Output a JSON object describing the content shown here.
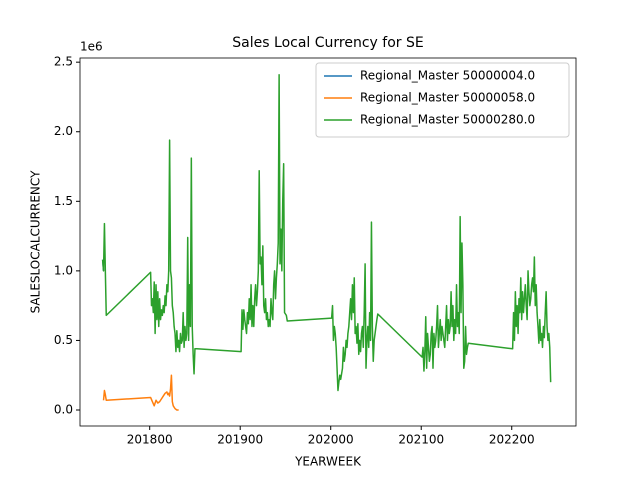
{
  "chart_data": {
    "type": "line",
    "title": "Sales Local Currency for SE",
    "xlabel": "YEARWEEK",
    "ylabel": "SALESLOCALCURRENCY",
    "y_offset_label": "1e6",
    "xlim": [
      201723,
      202271
    ],
    "xticks": [
      201800,
      201900,
      202000,
      202100,
      202200
    ],
    "ylim": [
      -115000,
      2530000
    ],
    "yticks": [
      {
        "value": 0,
        "label": "0.0"
      },
      {
        "value": 500000,
        "label": "0.5"
      },
      {
        "value": 1000000,
        "label": "1.0"
      },
      {
        "value": 1500000,
        "label": "1.5"
      },
      {
        "value": 2000000,
        "label": "2.0"
      },
      {
        "value": 2500000,
        "label": "2.5"
      }
    ],
    "legend": "upper right",
    "grid": false,
    "series": [
      {
        "name": "Regional_Master 50000004.0",
        "color": "#1f77b4",
        "x": [
          201748,
          201749
        ],
        "values": [
          1080000,
          1000000
        ]
      },
      {
        "name": "Regional_Master 50000058.0",
        "color": "#ff7f0e",
        "x": [
          201749,
          201750,
          201751,
          201752,
          201801,
          201803,
          201805,
          201807,
          201809,
          201811,
          201813,
          201815,
          201817,
          201819,
          201820,
          201821,
          201822,
          201823,
          201824,
          201825,
          201826,
          201828,
          201830,
          201832
        ],
        "values": [
          70000,
          140000,
          110000,
          70000,
          90000,
          60000,
          30000,
          70000,
          50000,
          60000,
          80000,
          100000,
          120000,
          130000,
          110000,
          120000,
          100000,
          150000,
          250000,
          60000,
          30000,
          10000,
          0,
          0
        ]
      },
      {
        "name": "Regional_Master 50000280.0",
        "color": "#2ca02c",
        "x": [
          201748,
          201749,
          201750,
          201751,
          201752,
          201801,
          201802,
          201803,
          201804,
          201805,
          201806,
          201807,
          201808,
          201809,
          201810,
          201811,
          201812,
          201813,
          201814,
          201815,
          201816,
          201817,
          201818,
          201819,
          201820,
          201821,
          201822,
          201823,
          201824,
          201825,
          201826,
          201827,
          201828,
          201829,
          201830,
          201831,
          201832,
          201833,
          201834,
          201835,
          201836,
          201837,
          201838,
          201839,
          201840,
          201841,
          201842,
          201843,
          201844,
          201845,
          201846,
          201847,
          201848,
          201849,
          201850,
          201851,
          201852,
          201901,
          201902,
          201903,
          201904,
          201905,
          201906,
          201907,
          201908,
          201909,
          201910,
          201911,
          201912,
          201913,
          201914,
          201915,
          201916,
          201917,
          201918,
          201919,
          201920,
          201921,
          201922,
          201923,
          201924,
          201925,
          201926,
          201927,
          201928,
          201929,
          201930,
          201931,
          201932,
          201933,
          201934,
          201935,
          201936,
          201937,
          201938,
          201939,
          201940,
          201941,
          201942,
          201943,
          201944,
          201945,
          201946,
          201947,
          201948,
          201949,
          201950,
          201951,
          201952,
          202001,
          202002,
          202003,
          202004,
          202005,
          202006,
          202007,
          202008,
          202009,
          202010,
          202011,
          202012,
          202013,
          202014,
          202015,
          202016,
          202017,
          202018,
          202019,
          202020,
          202021,
          202022,
          202023,
          202024,
          202025,
          202026,
          202027,
          202028,
          202029,
          202030,
          202031,
          202032,
          202033,
          202034,
          202035,
          202036,
          202037,
          202038,
          202039,
          202040,
          202041,
          202042,
          202043,
          202044,
          202045,
          202046,
          202047,
          202048,
          202049,
          202050,
          202051,
          202052,
          202101,
          202102,
          202103,
          202104,
          202105,
          202106,
          202107,
          202108,
          202109,
          202110,
          202111,
          202112,
          202113,
          202114,
          202115,
          202116,
          202117,
          202118,
          202119,
          202120,
          202121,
          202122,
          202123,
          202124,
          202125,
          202126,
          202127,
          202128,
          202129,
          202130,
          202131,
          202132,
          202133,
          202134,
          202135,
          202136,
          202137,
          202138,
          202139,
          202140,
          202141,
          202142,
          202143,
          202144,
          202145,
          202146,
          202147,
          202148,
          202149,
          202150,
          202151,
          202152,
          202201,
          202202,
          202203,
          202204,
          202205,
          202206,
          202207,
          202208,
          202209,
          202210,
          202211,
          202212,
          202213,
          202214,
          202215,
          202216,
          202217,
          202218,
          202219,
          202220,
          202221,
          202222,
          202223,
          202224,
          202225,
          202226,
          202227,
          202228,
          202229,
          202230,
          202231,
          202232,
          202233,
          202234,
          202235,
          202236,
          202237,
          202238,
          202239,
          202240,
          202241,
          202242,
          202243
        ],
        "values": [
          1080000,
          1000000,
          1340000,
          1000000,
          680000,
          990000,
          750000,
          800000,
          700000,
          920000,
          550000,
          900000,
          650000,
          850000,
          600000,
          800000,
          650000,
          720000,
          680000,
          750000,
          700000,
          820000,
          750000,
          900000,
          850000,
          1000000,
          1940000,
          1000000,
          950000,
          750000,
          700000,
          600000,
          550000,
          420000,
          570000,
          450000,
          500000,
          420000,
          550000,
          480000,
          500000,
          700000,
          450000,
          600000,
          500000,
          550000,
          1240000,
          500000,
          900000,
          600000,
          1810000,
          600000,
          400000,
          260000,
          440000,
          440000,
          440000,
          420000,
          720000,
          580000,
          720000,
          650000,
          600000,
          550000,
          700000,
          620000,
          800000,
          650000,
          900000,
          600000,
          750000,
          600000,
          800000,
          900000,
          750000,
          850000,
          1000000,
          1720000,
          1050000,
          1100000,
          900000,
          1180000,
          750000,
          700000,
          800000,
          650000,
          700000,
          600000,
          650000,
          600000,
          800000,
          700000,
          650000,
          900000,
          1000000,
          800000,
          950000,
          1050000,
          1200000,
          2410000,
          1050000,
          1300000,
          1000000,
          1500000,
          1770000,
          700000,
          690000,
          680000,
          640000,
          660000,
          750000,
          500000,
          600000,
          550000,
          450000,
          300000,
          140000,
          200000,
          250000,
          220000,
          260000,
          300000,
          450000,
          350000,
          400000,
          500000,
          450000,
          550000,
          600000,
          700000,
          800000,
          650000,
          900000,
          700000,
          950000,
          550000,
          600000,
          480000,
          620000,
          400000,
          500000,
          420000,
          550000,
          600000,
          450000,
          700000,
          1050000,
          300000,
          500000,
          600000,
          450000,
          700000,
          500000,
          1350000,
          600000,
          350000,
          500000,
          550000,
          600000,
          650000,
          690000,
          380000,
          450000,
          280000,
          420000,
          670000,
          300000,
          550000,
          450000,
          350000,
          400000,
          550000,
          600000,
          300000,
          550000,
          450000,
          500000,
          600000,
          750000,
          450000,
          550000,
          650000,
          500000,
          600000,
          550000,
          500000,
          450000,
          600000,
          750000,
          500000,
          650000,
          550000,
          600000,
          850000,
          600000,
          750000,
          500000,
          650000,
          550000,
          900000,
          600000,
          700000,
          550000,
          1390000,
          700000,
          1200000,
          900000,
          300000,
          350000,
          600000,
          400000,
          450000,
          480000,
          440000,
          700000,
          500000,
          850000,
          600000,
          750000,
          550000,
          800000,
          700000,
          950000,
          650000,
          850000,
          700000,
          800000,
          900000,
          750000,
          650000,
          1000000,
          850000,
          750000,
          800000,
          900000,
          950000,
          850000,
          1100000,
          750000,
          900000,
          700000,
          600000,
          480000,
          650000,
          500000,
          550000,
          450000,
          600000,
          520000,
          700000,
          850000,
          600000,
          500000,
          550000,
          450000,
          200000
        ]
      }
    ]
  }
}
